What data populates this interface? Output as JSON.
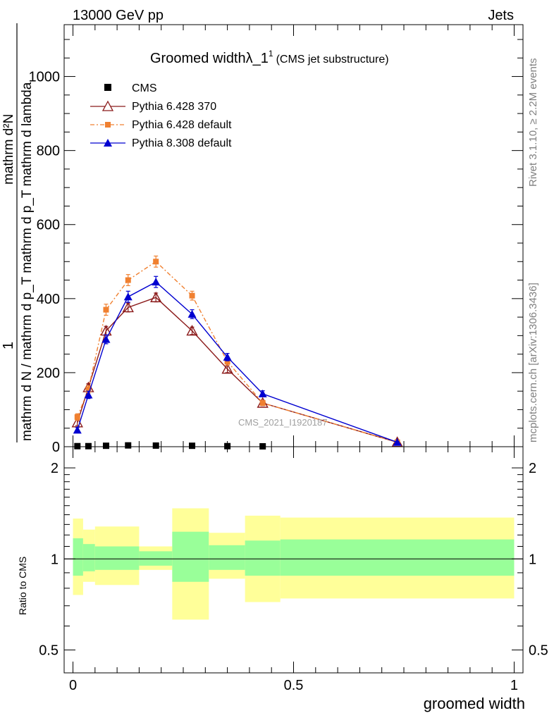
{
  "header": {
    "left": "13000 GeV pp",
    "right": "Jets",
    "rivet": "Rivet 3.1.10, ≥ 2.2M events",
    "source": "mcplots.cern.ch [arXiv:1306.3436]",
    "watermark": "CMS_2021_I1920187"
  },
  "chart_data": [
    {
      "type": "line",
      "title": "Groomed width",
      "title_symbol": "λ_1",
      "title_sup": "1",
      "subtitle": "(CMS jet substructure)",
      "ylabel_numerator": "mathrm d²N",
      "ylabel_sub_num_a": "mathrm d p",
      "ylabel_sub_num_b": "mathrm d p",
      "ylabel_sub_num_c": "mathrm d lambda",
      "ylabel_denominator": "mathrm d N / mathrm d p_T mathrm d p_T mathrm d lambda",
      "ylabel_one": "1",
      "ylabel_full": "1/(mathrm d N / mathrm d p_T) · mathrm d²N / mathrm d p_T mathrm d lambda",
      "xlim": [
        -0.02,
        1.02
      ],
      "ylim": [
        0,
        1140
      ],
      "y_ticks": [
        {
          "v": 0,
          "label": "0"
        },
        {
          "v": 200,
          "label": "200"
        },
        {
          "v": 400,
          "label": "400"
        },
        {
          "v": 600,
          "label": "600"
        },
        {
          "v": 800,
          "label": "800"
        },
        {
          "v": 1000,
          "label": "1000"
        }
      ],
      "legend_position": "top-left",
      "series": [
        {
          "name": "CMS",
          "color": "#000000",
          "marker": "square",
          "x": [
            0.01,
            0.035,
            0.075,
            0.125,
            0.188,
            0.27,
            0.35,
            0.43
          ],
          "y": [
            1.5,
            1.5,
            2.5,
            3.5,
            3,
            2.5,
            1.5,
            1
          ],
          "err": [
            0,
            0,
            0,
            0,
            0,
            0,
            0,
            0
          ]
        },
        {
          "name": "Pythia 6.428 370",
          "color": "#8b1a1a",
          "marker": "open-triangle",
          "x": [
            0.01,
            0.035,
            0.075,
            0.125,
            0.188,
            0.27,
            0.35,
            0.43,
            0.735
          ],
          "y": [
            65,
            160,
            313,
            376,
            403,
            313,
            210,
            118,
            12
          ],
          "err": [
            8,
            10,
            12,
            12,
            12,
            10,
            10,
            7,
            2
          ]
        },
        {
          "name": "Pythia 6.428 default",
          "color": "#f08030",
          "marker": "filled-square",
          "x": [
            0.01,
            0.035,
            0.075,
            0.125,
            0.188,
            0.27,
            0.35,
            0.43,
            0.735
          ],
          "y": [
            80,
            155,
            370,
            450,
            500,
            408,
            230,
            118,
            12
          ],
          "err": [
            9,
            10,
            15,
            15,
            15,
            12,
            10,
            7,
            2
          ]
        },
        {
          "name": "Pythia 8.308 default",
          "color": "#0000d0",
          "marker": "filled-triangle",
          "x": [
            0.01,
            0.035,
            0.075,
            0.125,
            0.188,
            0.27,
            0.35,
            0.43,
            0.735
          ],
          "y": [
            45,
            140,
            290,
            405,
            445,
            358,
            242,
            143,
            12
          ],
          "err": [
            7,
            10,
            12,
            15,
            15,
            12,
            10,
            8,
            2
          ]
        }
      ]
    },
    {
      "type": "area",
      "title": "",
      "ylabel": "Ratio to CMS",
      "xlabel": "groomed width",
      "xlim": [
        -0.02,
        1.02
      ],
      "ylim": [
        0.42,
        2.35
      ],
      "log_y": true,
      "y_ticks": [
        {
          "v": 0.5,
          "label": "0.5"
        },
        {
          "v": 1,
          "label": "1"
        },
        {
          "v": 2,
          "label": "2"
        }
      ],
      "x_ticks": [
        {
          "v": 0,
          "label": "0"
        },
        {
          "v": 0.5,
          "label": "0.5"
        },
        {
          "v": 1,
          "label": "1"
        }
      ],
      "bands_colors": {
        "outer": "#ffff99",
        "inner": "#99ff99",
        "line": "#000000"
      },
      "bands": [
        {
          "x0": 0.0,
          "x1": 0.023,
          "stat_lo": 0.88,
          "stat_hi": 1.17,
          "tot_lo": 0.76,
          "tot_hi": 1.36
        },
        {
          "x0": 0.023,
          "x1": 0.05,
          "stat_lo": 0.91,
          "stat_hi": 1.12,
          "tot_lo": 0.84,
          "tot_hi": 1.25
        },
        {
          "x0": 0.05,
          "x1": 0.15,
          "stat_lo": 0.92,
          "stat_hi": 1.1,
          "tot_lo": 0.82,
          "tot_hi": 1.28
        },
        {
          "x0": 0.15,
          "x1": 0.225,
          "stat_lo": 0.95,
          "stat_hi": 1.06,
          "tot_lo": 0.92,
          "tot_hi": 1.1
        },
        {
          "x0": 0.225,
          "x1": 0.308,
          "stat_lo": 0.84,
          "stat_hi": 1.23,
          "tot_lo": 0.63,
          "tot_hi": 1.47
        },
        {
          "x0": 0.308,
          "x1": 0.39,
          "stat_lo": 0.92,
          "stat_hi": 1.11,
          "tot_lo": 0.86,
          "tot_hi": 1.22
        },
        {
          "x0": 0.39,
          "x1": 0.47,
          "stat_lo": 0.88,
          "stat_hi": 1.15,
          "tot_lo": 0.72,
          "tot_hi": 1.39
        },
        {
          "x0": 0.47,
          "x1": 1.0,
          "stat_lo": 0.88,
          "stat_hi": 1.16,
          "tot_lo": 0.74,
          "tot_hi": 1.37
        }
      ]
    }
  ]
}
